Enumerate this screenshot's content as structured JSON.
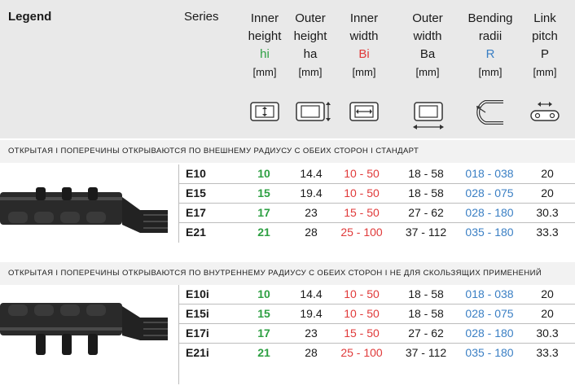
{
  "header": {
    "legend": "Legend",
    "series": "Series",
    "columns": [
      {
        "line1": "Inner",
        "line2": "height",
        "symbol": "hi",
        "unit": "[mm]",
        "color": "#2ea043"
      },
      {
        "line1": "Outer",
        "line2": "height",
        "symbol": "ha",
        "unit": "[mm]",
        "color": "#1a1a1a"
      },
      {
        "line1": "Inner",
        "line2": "width",
        "symbol": "Bi",
        "unit": "[mm]",
        "color": "#e03a3a"
      },
      {
        "line1": "Outer",
        "line2": "width",
        "symbol": "Ba",
        "unit": "[mm]",
        "color": "#1a1a1a"
      },
      {
        "line1": "Bending",
        "line2": "radii",
        "symbol": "R",
        "unit": "[mm]",
        "color": "#3a7fc4"
      },
      {
        "line1": "Link",
        "line2": "pitch",
        "symbol": "P",
        "unit": "[mm]",
        "color": "#1a1a1a"
      }
    ]
  },
  "sections": [
    {
      "title": "ОТКРЫТАЯ I ПОПЕРЕЧИНЫ ОТКРЫВАЮТСЯ ПО ВНЕШНЕМУ РАДИУСУ С ОБЕИХ СТОРОН I СТАНДАРТ",
      "rows": [
        {
          "series": "E10",
          "hi": "10",
          "ha": "14.4",
          "bi": "10 - 50",
          "ba": "18 - 58",
          "r": "018 - 038",
          "p": "20"
        },
        {
          "series": "E15",
          "hi": "15",
          "ha": "19.4",
          "bi": "10 - 50",
          "ba": "18 - 58",
          "r": "028 - 075",
          "p": "20"
        },
        {
          "series": "E17",
          "hi": "17",
          "ha": "23",
          "bi": "15 - 50",
          "ba": "27 - 62",
          "r": "028 - 180",
          "p": "30.3"
        },
        {
          "series": "E21",
          "hi": "21",
          "ha": "28",
          "bi": "25 - 100",
          "ba": "37 - 112",
          "r": "035 - 180",
          "p": "33.3"
        }
      ]
    },
    {
      "title": "ОТКРЫТАЯ I ПОПЕРЕЧИНЫ ОТКРЫВАЮТСЯ ПО ВНУТРЕННЕМУ РАДИУСУ С ОБЕИХ СТОРОН I НЕ ДЛЯ СКОЛЬЗЯЩИХ ПРИМЕНЕНИЙ",
      "rows": [
        {
          "series": "E10i",
          "hi": "10",
          "ha": "14.4",
          "bi": "10 - 50",
          "ba": "18 - 58",
          "r": "018 - 038",
          "p": "20"
        },
        {
          "series": "E15i",
          "hi": "15",
          "ha": "19.4",
          "bi": "10 - 50",
          "ba": "18 - 58",
          "r": "028 - 075",
          "p": "20"
        },
        {
          "series": "E17i",
          "hi": "17",
          "ha": "23",
          "bi": "15 - 50",
          "ba": "27 - 62",
          "r": "028 - 180",
          "p": "30.3"
        },
        {
          "series": "E21i",
          "hi": "21",
          "ha": "28",
          "bi": "25 - 100",
          "ba": "37 - 112",
          "r": "035 - 180",
          "p": "33.3"
        }
      ]
    }
  ],
  "icons": [
    "inner-height-icon",
    "outer-height-icon",
    "inner-width-icon",
    "outer-width-icon",
    "bending-radius-icon",
    "link-pitch-icon"
  ]
}
